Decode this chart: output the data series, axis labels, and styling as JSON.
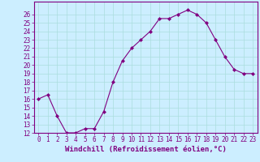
{
  "x": [
    0,
    1,
    2,
    3,
    4,
    5,
    6,
    7,
    8,
    9,
    10,
    11,
    12,
    13,
    14,
    15,
    16,
    17,
    18,
    19,
    20,
    21,
    22,
    23
  ],
  "y": [
    16,
    16.5,
    14,
    12,
    12,
    12.5,
    12.5,
    14.5,
    18,
    20.5,
    22,
    23,
    24,
    25.5,
    25.5,
    26,
    26.5,
    26,
    25,
    23,
    21,
    19.5,
    19,
    19
  ],
  "line_color": "#800080",
  "marker": "D",
  "marker_size": 2,
  "bg_color": "#cceeff",
  "grid_color": "#aadddd",
  "xlabel": "Windchill (Refroidissement éolien,°C)",
  "ylim": [
    12,
    27
  ],
  "xlim": [
    -0.5,
    23.5
  ],
  "yticks": [
    12,
    13,
    14,
    15,
    16,
    17,
    18,
    19,
    20,
    21,
    22,
    23,
    24,
    25,
    26
  ],
  "xticks": [
    0,
    1,
    2,
    3,
    4,
    5,
    6,
    7,
    8,
    9,
    10,
    11,
    12,
    13,
    14,
    15,
    16,
    17,
    18,
    19,
    20,
    21,
    22,
    23
  ],
  "tick_label_fontsize": 5.5,
  "xlabel_fontsize": 6.5,
  "spine_color": "#800080"
}
